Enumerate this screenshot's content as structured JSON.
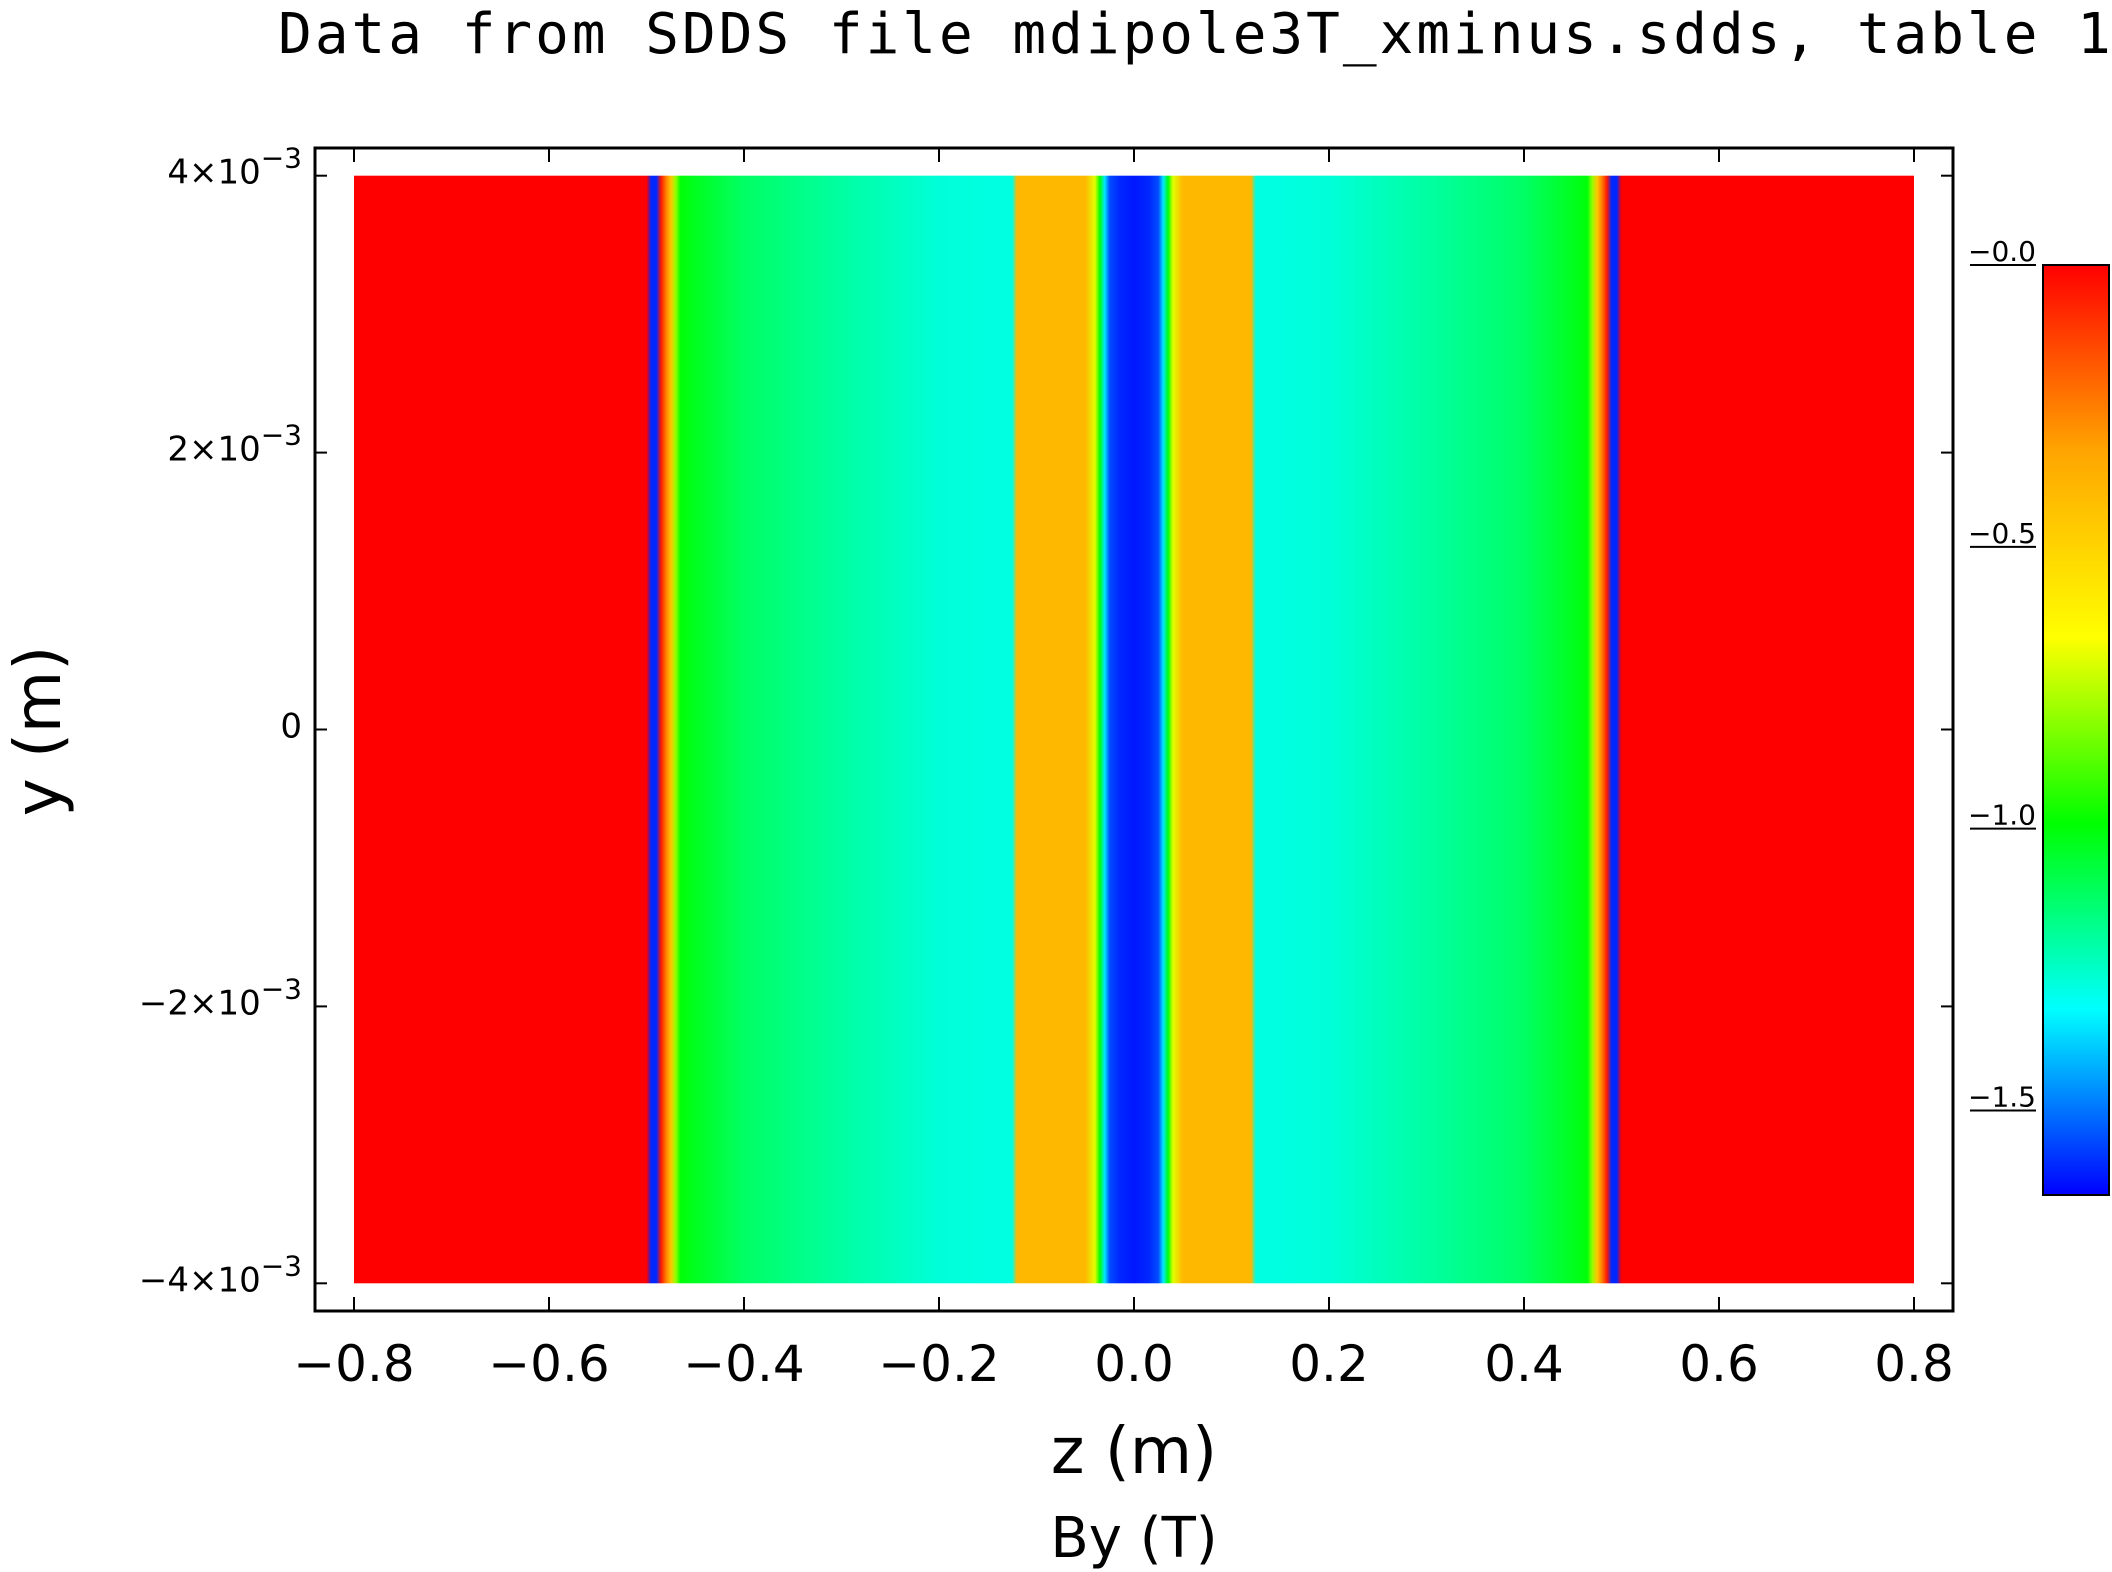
{
  "chart_data": {
    "type": "heatmap",
    "title": "Data from SDDS file mdipole3T_xminus.sdds, table 1",
    "xlabel": "z (m)",
    "ylabel": "y (m)",
    "colorbar_label": "By (T)",
    "xlim": [
      -0.84,
      0.84
    ],
    "ylim": [
      -0.0042,
      0.0042
    ],
    "x_ticks": [
      {
        "value": -0.8,
        "label": "−0.8"
      },
      {
        "value": -0.6,
        "label": "−0.6"
      },
      {
        "value": -0.4,
        "label": "−0.4"
      },
      {
        "value": -0.2,
        "label": "−0.2"
      },
      {
        "value": 0.0,
        "label": "0.0"
      },
      {
        "value": 0.2,
        "label": "0.2"
      },
      {
        "value": 0.4,
        "label": "0.4"
      },
      {
        "value": 0.6,
        "label": "0.6"
      },
      {
        "value": 0.8,
        "label": "0.8"
      }
    ],
    "y_ticks": [
      {
        "value": 0.004,
        "mant": "4×10",
        "exp": "−3"
      },
      {
        "value": 0.002,
        "mant": "2×10",
        "exp": "−3"
      },
      {
        "value": 0.0,
        "mant": "0",
        "exp": ""
      },
      {
        "value": -0.002,
        "mant": "−2×10",
        "exp": "−3"
      },
      {
        "value": -0.004,
        "mant": "−4×10",
        "exp": "−3"
      }
    ],
    "colorbar": {
      "range": [
        -1.65,
        0.0
      ],
      "ticks": [
        {
          "value": 0.0,
          "label": "−0.0"
        },
        {
          "value": -0.5,
          "label": "−0.5"
        },
        {
          "value": -1.0,
          "label": "−1.0"
        },
        {
          "value": -1.5,
          "label": "−1.5"
        }
      ],
      "colors": [
        "#0000ff",
        "#00ffff",
        "#00ff00",
        "#ffff00",
        "#ffa500",
        "#ff0000"
      ]
    },
    "data_extent": {
      "z": [
        -0.8,
        0.8
      ],
      "y": [
        -0.004,
        0.004
      ]
    },
    "profile_z": [
      -0.8,
      -0.5,
      -0.495,
      -0.49,
      -0.485,
      -0.48,
      -0.475,
      -0.47,
      -0.465,
      -0.45,
      -0.4,
      -0.3,
      -0.2,
      -0.15,
      -0.125,
      -0.12,
      -0.11,
      -0.05,
      -0.04,
      -0.035,
      -0.03,
      -0.025,
      -0.015,
      0.0,
      0.015,
      0.025,
      0.03,
      0.035,
      0.04,
      0.05,
      0.11,
      0.12,
      0.125,
      0.15,
      0.2,
      0.3,
      0.4,
      0.45,
      0.465,
      0.47,
      0.475,
      0.48,
      0.485,
      0.49,
      0.495,
      0.5,
      0.8
    ],
    "profile_by": [
      0.0,
      0.0,
      -1.6,
      -1.6,
      -0.05,
      -0.25,
      -0.45,
      -0.8,
      -1.0,
      -1.03,
      -1.12,
      -1.2,
      -1.27,
      -1.28,
      -1.28,
      -0.4,
      -0.4,
      -0.4,
      -0.7,
      -1.0,
      -1.35,
      -1.55,
      -1.6,
      -1.62,
      -1.6,
      -1.55,
      -1.35,
      -1.0,
      -0.7,
      -0.4,
      -0.4,
      -0.4,
      -1.28,
      -1.28,
      -1.27,
      -1.2,
      -1.12,
      -1.03,
      -1.0,
      -0.8,
      -0.45,
      -0.25,
      -0.05,
      -1.6,
      -1.6,
      0.0,
      0.0
    ]
  }
}
